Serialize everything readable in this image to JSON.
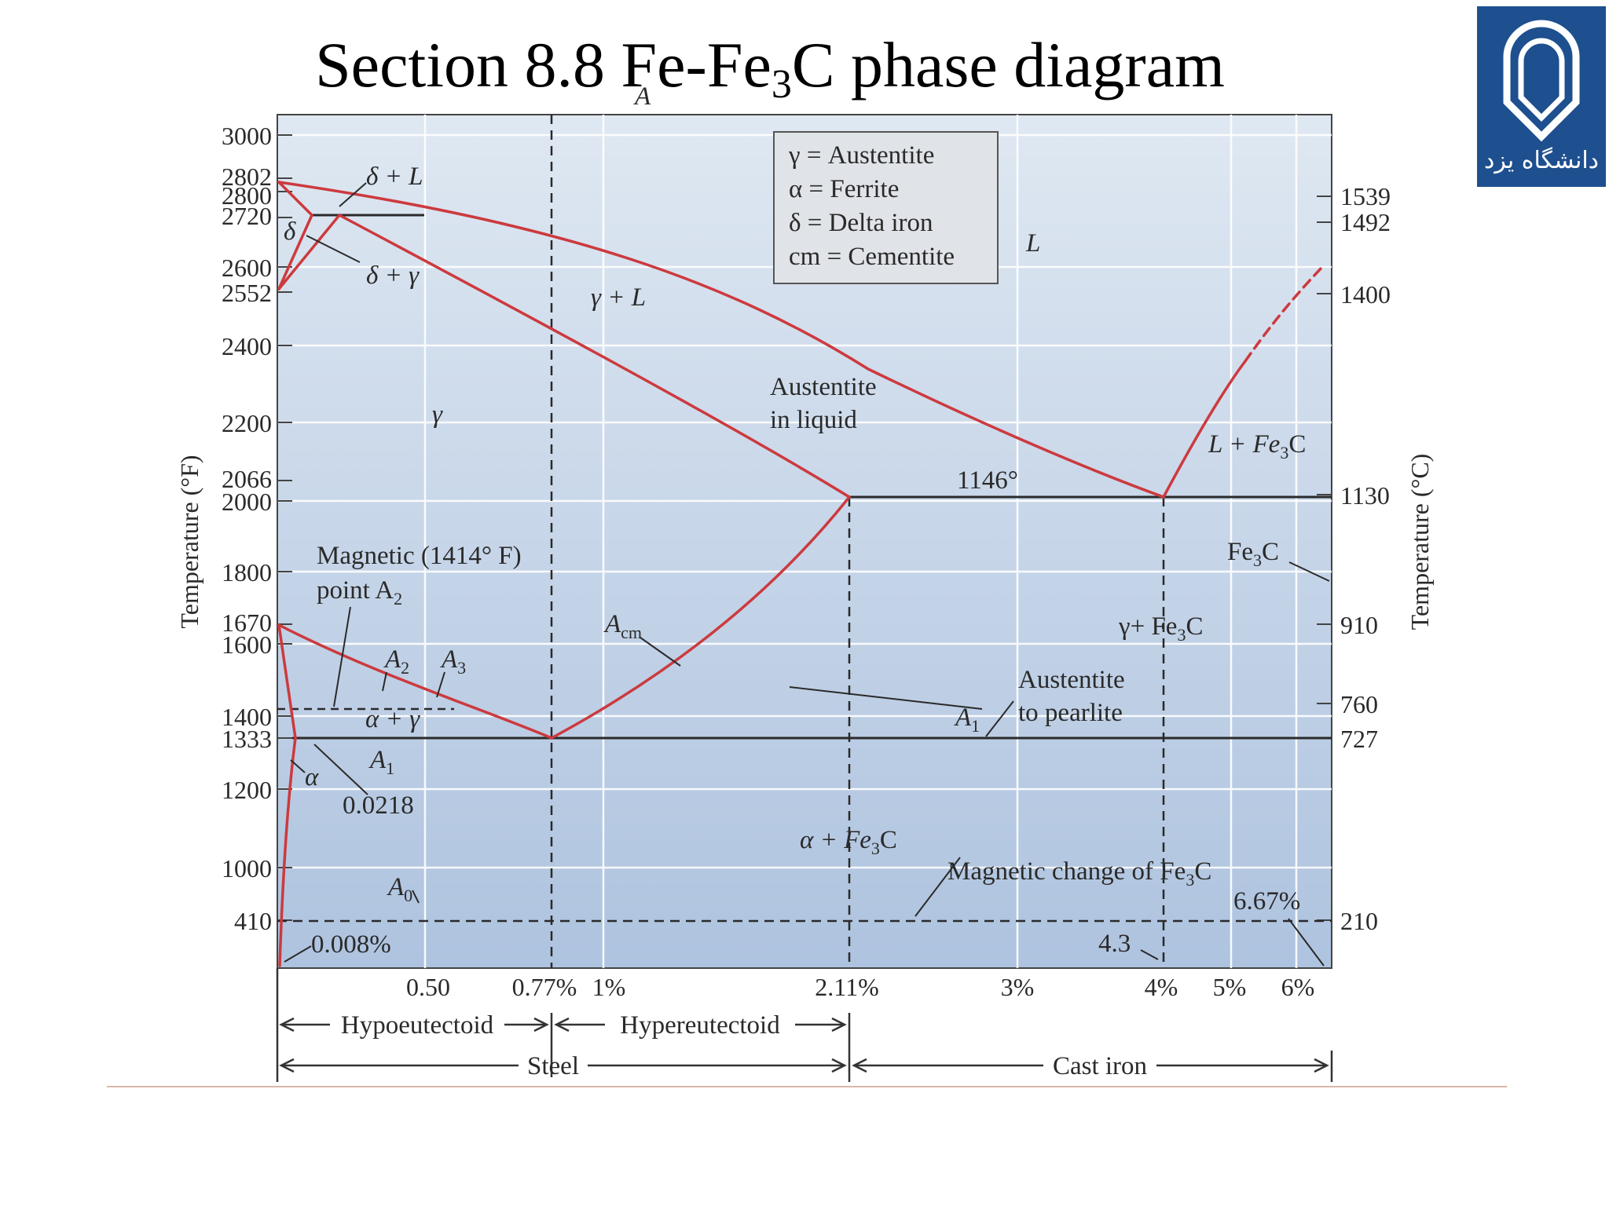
{
  "slide": {
    "title_prefix": "Section 8.8 Fe-Fe",
    "title_sub": "3",
    "title_suffix": "C phase diagram",
    "logo_icon": "university-emblem-icon",
    "logo_text": "دانشگاه یزد"
  },
  "axes": {
    "left_label": "Temperature (°F)",
    "right_label": "Temperature (°C)",
    "left_ticks": [
      "3000",
      "2802",
      "2800",
      "2720",
      "2600",
      "2552",
      "2400",
      "2200",
      "2066",
      "2000",
      "1800",
      "1670",
      "1600",
      "1400",
      "1333",
      "1200",
      "1000",
      "410"
    ],
    "right_ticks": [
      "1539",
      "1492",
      "1400",
      "1130",
      "910",
      "760",
      "727",
      "210"
    ],
    "bottom_ticks": [
      "0.50",
      "0.77%",
      "1%",
      "2.11%",
      "3%",
      "4%",
      "5%",
      "6%"
    ]
  },
  "legend": {
    "items": [
      "γ = Austentite",
      "α = Ferrite",
      "δ = Delta iron",
      "cm = Cementite"
    ]
  },
  "labels": {
    "top_A": "A",
    "delta_L": "δ + L",
    "delta": "δ",
    "delta_gamma": "δ + γ",
    "gamma_L": "γ + L",
    "L": "L",
    "gamma": "γ",
    "austenite_in_liquid_1": "Austentite",
    "austenite_in_liquid_2": "in liquid",
    "L_Fe3C_prefix": "L + Fe",
    "L_Fe3C_sub": "3",
    "L_Fe3C_suffix": "C",
    "eutectic_temp": "1146°",
    "magnetic_point_1": "Magnetic (1414° F)",
    "magnetic_point_2": "point A",
    "magnetic_point_2_sub": "2",
    "Fe3C_prefix": "Fe",
    "Fe3C_sub": "3",
    "Fe3C_suffix": "C",
    "Acm": "A",
    "Acm_sub": "cm",
    "gamma_Fe3C_prefix": "γ+ Fe",
    "gamma_Fe3C_sub": "3",
    "gamma_Fe3C_suffix": "C",
    "A2": "A",
    "A2_sub": "2",
    "A3": "A",
    "A3_sub": "3",
    "austenite_to_pearlite_1": "Austentite",
    "austenite_to_pearlite_2": "to pearlite",
    "alpha_gamma": "α + γ",
    "A1_mid": "A",
    "A1_mid_sub": "1",
    "A1_right": "A",
    "A1_right_sub": "1",
    "alpha": "α",
    "c_0218": "0.0218",
    "alpha_Fe3C_prefix": "α + Fe",
    "alpha_Fe3C_sub": "3",
    "alpha_Fe3C_suffix": "C",
    "magnetic_change_prefix": "Magnetic change of Fe",
    "magnetic_change_sub": "3",
    "magnetic_change_suffix": "C",
    "A0": "A",
    "A0_sub": "0",
    "c_667": "6.67%",
    "c_0008": "0.008%",
    "c_43": "4.3"
  },
  "bottom": {
    "hypoeutectoid": "Hypoeutectoid",
    "hypereutectoid": "Hypereutectoid",
    "steel": "Steel",
    "cast_iron": "Cast iron"
  },
  "colors": {
    "plot_top": "#dfe8f2",
    "plot_bottom": "#aec3df",
    "phase_line": "#cc3a3e",
    "black_line": "#2a2a2a",
    "grid": "#ffffff"
  }
}
